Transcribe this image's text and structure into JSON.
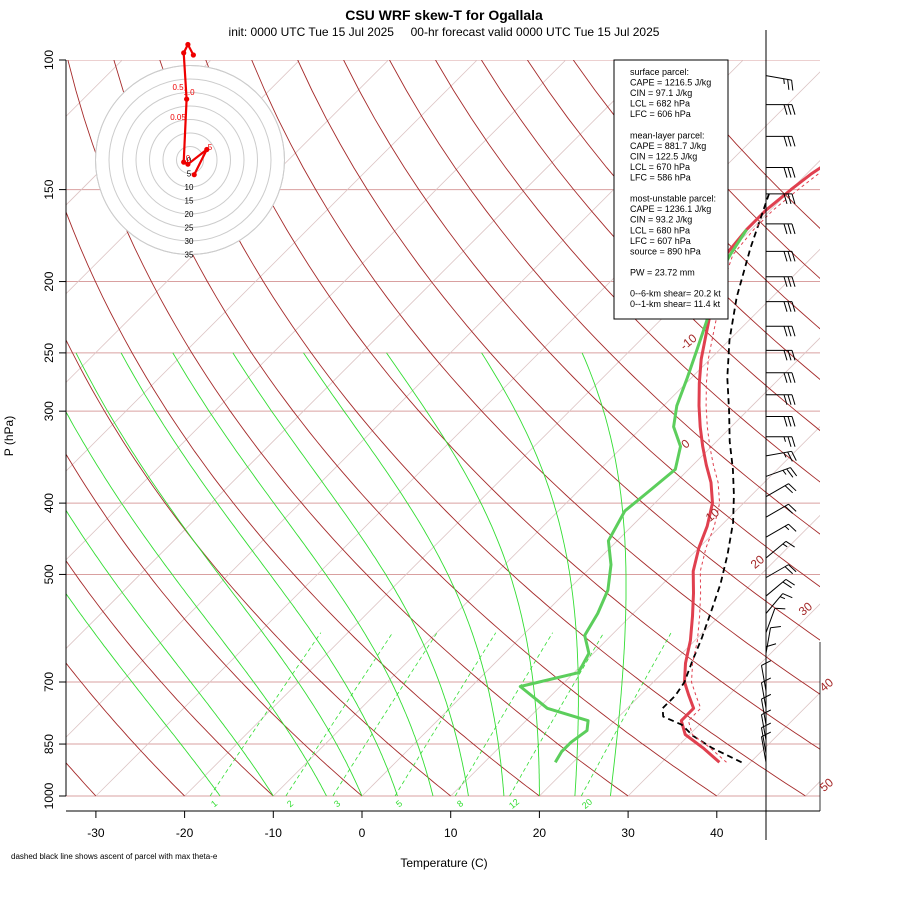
{
  "chart_data": {
    "type": "skew-t",
    "title": "CSU WRF skew-T for Ogallala",
    "subtitle": "init: 0000 UTC Tue 15 Jul 2025     00-hr forecast valid 0000 UTC Tue 15 Jul 2025",
    "xlabel": "Temperature (C)",
    "ylabel": "P (hPa)",
    "x_ticks": [
      -30,
      -20,
      -10,
      0,
      10,
      20,
      30,
      40
    ],
    "y_ticks": [
      100,
      150,
      200,
      250,
      300,
      400,
      500,
      700,
      850,
      1000
    ],
    "xlim": [
      -33,
      51
    ],
    "ylim": [
      1000,
      100
    ],
    "dry_adiabat_labels": [
      "-10",
      "0",
      "10",
      "20",
      "30",
      "40",
      "50"
    ],
    "mixing_ratio_labels": [
      "1",
      "2",
      "3",
      "5",
      "8",
      "12",
      "20"
    ],
    "footnote": "dashed black line shows ascent of parcel with max theta-e",
    "info_box": [
      "surface parcel:",
      "CAPE = 1216.5 J/kg",
      "CIN = 97.1 J/kg",
      "LCL = 682 hPa",
      "LFC = 606 hPa",
      "",
      "mean-layer parcel:",
      "CAPE = 881.7 J/kg",
      "CIN = 122.5 J/kg",
      "LCL = 670 hPa",
      "LFC = 586 hPa",
      "",
      "most-unstable parcel:",
      "CAPE = 1236.1 J/kg",
      "CIN = 93.2 J/kg",
      "LCL = 680 hPa",
      "LFC = 607 hPa",
      "source = 890 hPa",
      "",
      "PW =  23.72 mm",
      "",
      "0--6-km shear= 20.2 kt",
      "0--1-km shear= 11.4 kt"
    ],
    "series": [
      {
        "name": "temperature",
        "color": "#e0404f",
        "points": [
          [
            36.5,
            900
          ],
          [
            33,
            860
          ],
          [
            29.5,
            825
          ],
          [
            27.5,
            790
          ],
          [
            27.5,
            760
          ],
          [
            25.5,
            730
          ],
          [
            23.5,
            700
          ],
          [
            21.5,
            660
          ],
          [
            19.5,
            615
          ],
          [
            17,
            570
          ],
          [
            14.5,
            530
          ],
          [
            12,
            495
          ],
          [
            10,
            460
          ],
          [
            8.5,
            430
          ],
          [
            6.5,
            400
          ],
          [
            4,
            375
          ],
          [
            1.5,
            355
          ],
          [
            -1,
            335
          ],
          [
            -3.5,
            315
          ],
          [
            -6,
            295
          ],
          [
            -8.5,
            275
          ],
          [
            -11,
            255
          ],
          [
            -13,
            238
          ],
          [
            -15,
            222
          ],
          [
            -17,
            208
          ],
          [
            -18.5,
            196
          ],
          [
            -20,
            184
          ],
          [
            -20.5,
            170
          ],
          [
            -20.5,
            160
          ],
          [
            -20,
            150
          ],
          [
            -19.5,
            143
          ],
          [
            -18.5,
            135
          ],
          [
            -17.5,
            127
          ],
          [
            -16.5,
            120
          ],
          [
            -15,
            113
          ],
          [
            -13,
            107
          ],
          [
            -11.5,
            103
          ]
        ]
      },
      {
        "name": "dewpoint",
        "color": "#5cce5c",
        "points": [
          [
            18,
            900
          ],
          [
            17.5,
            870
          ],
          [
            17.5,
            845
          ],
          [
            18,
            815
          ],
          [
            17,
            790
          ],
          [
            11,
            760
          ],
          [
            5.5,
            710
          ],
          [
            10.5,
            680
          ],
          [
            9.5,
            640
          ],
          [
            7,
            605
          ],
          [
            6,
            565
          ],
          [
            4.5,
            525
          ],
          [
            2,
            485
          ],
          [
            -1,
            450
          ],
          [
            -2.5,
            410
          ],
          [
            -2,
            385
          ],
          [
            -1.5,
            360
          ],
          [
            -3.5,
            335
          ],
          [
            -6.5,
            315
          ],
          [
            -8.5,
            295
          ],
          [
            -10.5,
            270
          ],
          [
            -12.5,
            248
          ],
          [
            -14.5,
            228
          ],
          [
            -16.5,
            210
          ],
          [
            -18.5,
            196
          ],
          [
            -19.5,
            184
          ],
          [
            -20.5,
            170
          ]
        ]
      },
      {
        "name": "parcel",
        "color": "#000000",
        "dashed": true,
        "points": [
          [
            39,
            900
          ],
          [
            34,
            860
          ],
          [
            30.5,
            828
          ],
          [
            28,
            800
          ],
          [
            25,
            780
          ],
          [
            24,
            760
          ],
          [
            24,
            730
          ],
          [
            23.5,
            700
          ],
          [
            22,
            655
          ],
          [
            20.5,
            610
          ],
          [
            18.5,
            560
          ],
          [
            16.5,
            515
          ],
          [
            14,
            470
          ],
          [
            11,
            425
          ],
          [
            8,
            390
          ],
          [
            5,
            360
          ],
          [
            1.5,
            330
          ],
          [
            -2,
            300
          ],
          [
            -6,
            270
          ],
          [
            -10,
            240
          ],
          [
            -14,
            210
          ],
          [
            -18,
            180
          ],
          [
            -22,
            152
          ]
        ]
      }
    ],
    "hodograph": {
      "ring_labels": [
        "0",
        "5",
        "10",
        "15",
        "20",
        "25",
        "30",
        "35"
      ],
      "height_labels": [
        "0.5",
        "1.0",
        "0.05",
        "0",
        "5"
      ],
      "trace": [
        [
          1.0,
          -3.5
        ],
        [
          4.0,
          2.5
        ],
        [
          -0.5,
          -1.0
        ],
        [
          -1.5,
          -0.5
        ],
        [
          -0.8,
          14.5
        ],
        [
          -1.5,
          25.5
        ],
        [
          -0.5,
          27.5
        ],
        [
          0.8,
          25.0
        ]
      ]
    },
    "wind_barbs": [
      {
        "p": 105,
        "speed": 25,
        "dir": 280
      },
      {
        "p": 115,
        "speed": 30,
        "dir": 270
      },
      {
        "p": 127,
        "speed": 30,
        "dir": 270
      },
      {
        "p": 140,
        "speed": 30,
        "dir": 270
      },
      {
        "p": 152,
        "speed": 30,
        "dir": 270
      },
      {
        "p": 167,
        "speed": 30,
        "dir": 270
      },
      {
        "p": 182,
        "speed": 30,
        "dir": 270
      },
      {
        "p": 197,
        "speed": 30,
        "dir": 270
      },
      {
        "p": 213,
        "speed": 30,
        "dir": 270
      },
      {
        "p": 230,
        "speed": 30,
        "dir": 270
      },
      {
        "p": 248,
        "speed": 30,
        "dir": 270
      },
      {
        "p": 266,
        "speed": 30,
        "dir": 270
      },
      {
        "p": 285,
        "speed": 30,
        "dir": 270
      },
      {
        "p": 305,
        "speed": 30,
        "dir": 270
      },
      {
        "p": 325,
        "speed": 25,
        "dir": 270
      },
      {
        "p": 345,
        "speed": 25,
        "dir": 260
      },
      {
        "p": 368,
        "speed": 25,
        "dir": 250
      },
      {
        "p": 392,
        "speed": 20,
        "dir": 240
      },
      {
        "p": 418,
        "speed": 20,
        "dir": 240
      },
      {
        "p": 445,
        "speed": 15,
        "dir": 240
      },
      {
        "p": 475,
        "speed": 15,
        "dir": 230
      },
      {
        "p": 505,
        "speed": 20,
        "dir": 240
      },
      {
        "p": 535,
        "speed": 20,
        "dir": 230
      },
      {
        "p": 565,
        "speed": 15,
        "dir": 220
      },
      {
        "p": 600,
        "speed": 10,
        "dir": 200
      },
      {
        "p": 640,
        "speed": 10,
        "dir": 190
      },
      {
        "p": 680,
        "speed": 10,
        "dir": 180
      },
      {
        "p": 720,
        "speed": 10,
        "dir": 170
      },
      {
        "p": 760,
        "speed": 10,
        "dir": 170
      },
      {
        "p": 800,
        "speed": 10,
        "dir": 170
      },
      {
        "p": 840,
        "speed": 10,
        "dir": 170
      },
      {
        "p": 875,
        "speed": 10,
        "dir": 170
      },
      {
        "p": 900,
        "speed": 10,
        "dir": 170
      }
    ]
  }
}
